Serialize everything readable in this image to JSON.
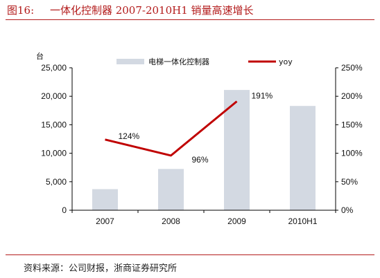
{
  "figure": {
    "number": "图16:",
    "title": "一体化控制器 2007-2010H1 销量高速增长",
    "source": "资料来源：公司财报，浙商证券研究所"
  },
  "colors": {
    "accent": "#b31b1b",
    "bar": "#d3d9e2",
    "line": "#c00000",
    "axis": "#000000"
  },
  "chart_data": {
    "type": "bar",
    "categories": [
      "2007",
      "2008",
      "2009",
      "2010H1"
    ],
    "series": [
      {
        "name": "电梯一体化控制器",
        "type": "bar",
        "axis": "left",
        "values": [
          3700,
          7250,
          21100,
          18300
        ]
      },
      {
        "name": "yoy",
        "type": "line",
        "axis": "right",
        "values": [
          124,
          96,
          191,
          null
        ],
        "labels": [
          "124%",
          "96%",
          "191%",
          ""
        ]
      }
    ],
    "y_left": {
      "unit": "台",
      "lim": [
        0,
        25000
      ],
      "ticks": [
        "0",
        "5,000",
        "10,000",
        "15,000",
        "20,000",
        "25,000"
      ]
    },
    "y_right": {
      "lim": [
        0,
        250
      ],
      "ticks": [
        "0%",
        "50%",
        "100%",
        "150%",
        "200%",
        "250%"
      ]
    },
    "grid": false,
    "legend": "top-center"
  }
}
